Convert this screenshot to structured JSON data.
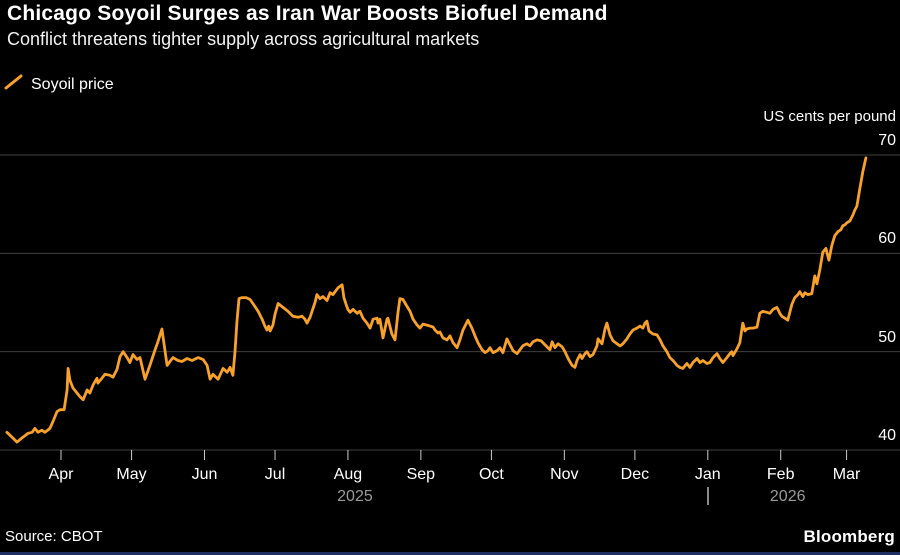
{
  "header": {
    "title": "Chicago Soyoil Surges as Iran War Boosts Biofuel Demand",
    "subtitle": "Conflict threatens tighter supply across agricultural markets"
  },
  "legend": {
    "label": "Soyoil price"
  },
  "footer": {
    "source": "Source: CBOT",
    "brand": "Bloomberg"
  },
  "colors": {
    "background": "#000000",
    "line": "#F8A12C",
    "grid": "#3f3f3f",
    "tick": "#cccccc",
    "text": "#ffffff",
    "muted_text": "#9a9a9a",
    "bottom_bar": "#1f2e63"
  },
  "chart_data": {
    "type": "line",
    "title": "Chicago Soyoil Surges as Iran War Boosts Biofuel Demand",
    "subtitle": "Conflict threatens tighter supply across agricultural markets",
    "unit_label": "US cents per pound",
    "legend_position": "top-left",
    "grid": true,
    "line_color": "#F8A12C",
    "x_axis": {
      "x_unit": "days since 2025-04-01",
      "tick_labels": [
        "Apr",
        "May",
        "Jun",
        "Jul",
        "Aug",
        "Sep",
        "Oct",
        "Nov",
        "Dec",
        "Jan",
        "Feb",
        "Mar"
      ],
      "tick_day_offsets": [
        0,
        30,
        61,
        91,
        122,
        153,
        183,
        214,
        244,
        275,
        306,
        334
      ],
      "year_labels": [
        {
          "text": "2025",
          "under_month": "Aug"
        },
        {
          "text": "2026",
          "under_month": "Feb"
        }
      ],
      "year_divider_under_month": "Jan"
    },
    "y_axis": {
      "ticks": [
        40,
        50,
        60,
        70
      ],
      "ylim": [
        40,
        70
      ]
    },
    "series": [
      {
        "name": "Soyoil price",
        "points": [
          [
            -23.0,
            41.8
          ],
          [
            -20.8,
            41.3
          ],
          [
            -18.7,
            40.8
          ],
          [
            -16.2,
            41.3
          ],
          [
            -14.0,
            41.7
          ],
          [
            -12.3,
            41.8
          ],
          [
            -11.1,
            42.2
          ],
          [
            -9.8,
            41.8
          ],
          [
            -8.1,
            42.0
          ],
          [
            -6.8,
            41.8
          ],
          [
            -4.7,
            42.2
          ],
          [
            -3.4,
            42.9
          ],
          [
            -1.7,
            43.9
          ],
          [
            -0.4,
            44.1
          ],
          [
            1.3,
            44.1
          ],
          [
            2.6,
            46.1
          ],
          [
            3.0,
            48.3
          ],
          [
            3.8,
            47.1
          ],
          [
            5.1,
            46.3
          ],
          [
            6.8,
            45.8
          ],
          [
            8.1,
            45.4
          ],
          [
            9.4,
            45.1
          ],
          [
            11.1,
            46.1
          ],
          [
            12.3,
            45.8
          ],
          [
            13.6,
            46.6
          ],
          [
            15.3,
            47.3
          ],
          [
            15.7,
            46.8
          ],
          [
            17.4,
            47.3
          ],
          [
            18.7,
            47.7
          ],
          [
            20.8,
            47.6
          ],
          [
            22.1,
            47.4
          ],
          [
            23.8,
            48.2
          ],
          [
            25.1,
            49.5
          ],
          [
            26.4,
            50.0
          ],
          [
            28.1,
            49.4
          ],
          [
            29.3,
            48.9
          ],
          [
            30.6,
            49.7
          ],
          [
            32.3,
            49.2
          ],
          [
            33.6,
            49.4
          ],
          [
            35.7,
            47.2
          ],
          [
            37.8,
            48.6
          ],
          [
            40.0,
            50.2
          ],
          [
            41.2,
            51.0
          ],
          [
            42.9,
            52.3
          ],
          [
            45.1,
            48.6
          ],
          [
            46.3,
            49.0
          ],
          [
            47.6,
            49.4
          ],
          [
            49.7,
            49.1
          ],
          [
            51.4,
            49.0
          ],
          [
            53.6,
            49.3
          ],
          [
            55.7,
            49.1
          ],
          [
            58.3,
            49.4
          ],
          [
            60.4,
            49.2
          ],
          [
            62.1,
            48.6
          ],
          [
            63.4,
            47.2
          ],
          [
            64.6,
            47.7
          ],
          [
            66.8,
            47.2
          ],
          [
            68.9,
            48.3
          ],
          [
            70.6,
            47.9
          ],
          [
            71.9,
            48.4
          ],
          [
            73.1,
            47.6
          ],
          [
            74.0,
            50.0
          ],
          [
            74.8,
            53.0
          ],
          [
            75.7,
            55.4
          ],
          [
            77.0,
            55.5
          ],
          [
            78.7,
            55.5
          ],
          [
            80.4,
            55.3
          ],
          [
            81.6,
            54.9
          ],
          [
            83.8,
            54.1
          ],
          [
            85.5,
            53.3
          ],
          [
            86.7,
            52.6
          ],
          [
            87.6,
            52.2
          ],
          [
            88.3,
            52.6
          ],
          [
            88.9,
            52.1
          ],
          [
            90.1,
            52.7
          ],
          [
            91.0,
            53.8
          ],
          [
            92.3,
            54.9
          ],
          [
            94.4,
            54.5
          ],
          [
            96.5,
            54.1
          ],
          [
            98.6,
            53.6
          ],
          [
            100.8,
            53.5
          ],
          [
            102.5,
            53.6
          ],
          [
            103.7,
            53.3
          ],
          [
            104.6,
            52.9
          ],
          [
            105.9,
            53.5
          ],
          [
            108.0,
            55.0
          ],
          [
            108.8,
            55.8
          ],
          [
            110.1,
            55.4
          ],
          [
            111.4,
            55.6
          ],
          [
            113.1,
            55.2
          ],
          [
            114.4,
            56.0
          ],
          [
            115.6,
            55.8
          ],
          [
            117.8,
            56.5
          ],
          [
            119.5,
            56.8
          ],
          [
            120.3,
            55.5
          ],
          [
            121.2,
            54.8
          ],
          [
            122.0,
            54.3
          ],
          [
            122.9,
            54.0
          ],
          [
            124.2,
            54.3
          ],
          [
            125.9,
            53.9
          ],
          [
            127.1,
            54.1
          ],
          [
            128.4,
            53.4
          ],
          [
            130.1,
            52.9
          ],
          [
            131.4,
            52.4
          ],
          [
            132.7,
            53.3
          ],
          [
            134.4,
            53.4
          ],
          [
            134.8,
            52.9
          ],
          [
            135.6,
            53.3
          ],
          [
            136.9,
            51.4
          ],
          [
            138.6,
            53.3
          ],
          [
            139.0,
            53.4
          ],
          [
            140.7,
            51.8
          ],
          [
            142.0,
            51.2
          ],
          [
            143.3,
            54.0
          ],
          [
            144.1,
            55.4
          ],
          [
            145.4,
            55.3
          ],
          [
            147.1,
            54.6
          ],
          [
            148.4,
            54.1
          ],
          [
            149.7,
            53.3
          ],
          [
            151.4,
            52.7
          ],
          [
            152.6,
            52.4
          ],
          [
            153.9,
            52.8
          ],
          [
            155.6,
            52.7
          ],
          [
            156.9,
            52.6
          ],
          [
            158.2,
            52.5
          ],
          [
            159.0,
            52.2
          ],
          [
            160.3,
            51.9
          ],
          [
            161.1,
            52.0
          ],
          [
            162.4,
            51.4
          ],
          [
            164.1,
            51.2
          ],
          [
            165.4,
            51.6
          ],
          [
            166.7,
            50.9
          ],
          [
            168.4,
            50.4
          ],
          [
            169.6,
            51.2
          ],
          [
            170.9,
            52.2
          ],
          [
            173.0,
            53.2
          ],
          [
            174.7,
            52.4
          ],
          [
            176.0,
            51.6
          ],
          [
            177.3,
            50.9
          ],
          [
            179.0,
            50.2
          ],
          [
            180.3,
            49.9
          ],
          [
            181.5,
            50.1
          ],
          [
            182.4,
            50.4
          ],
          [
            183.7,
            49.9
          ],
          [
            185.4,
            50.1
          ],
          [
            186.6,
            50.4
          ],
          [
            187.9,
            49.9
          ],
          [
            189.6,
            51.3
          ],
          [
            190.9,
            50.7
          ],
          [
            192.2,
            50.1
          ],
          [
            193.9,
            49.8
          ],
          [
            196.4,
            50.6
          ],
          [
            198.1,
            50.8
          ],
          [
            199.4,
            50.6
          ],
          [
            200.7,
            51.0
          ],
          [
            202.4,
            51.2
          ],
          [
            204.1,
            51.1
          ],
          [
            206.6,
            50.5
          ],
          [
            207.9,
            50.2
          ],
          [
            208.8,
            51.0
          ],
          [
            210.0,
            50.4
          ],
          [
            211.3,
            50.8
          ],
          [
            213.0,
            50.5
          ],
          [
            214.3,
            50.0
          ],
          [
            215.6,
            49.3
          ],
          [
            217.3,
            48.6
          ],
          [
            218.5,
            48.4
          ],
          [
            219.4,
            49.1
          ],
          [
            220.7,
            49.7
          ],
          [
            221.5,
            49.3
          ],
          [
            222.8,
            49.8
          ],
          [
            223.6,
            50.0
          ],
          [
            224.9,
            49.5
          ],
          [
            226.2,
            49.7
          ],
          [
            227.9,
            50.6
          ],
          [
            228.3,
            51.3
          ],
          [
            230.0,
            50.8
          ],
          [
            231.3,
            52.3
          ],
          [
            232.1,
            52.9
          ],
          [
            233.4,
            51.7
          ],
          [
            234.7,
            51.1
          ],
          [
            236.4,
            50.8
          ],
          [
            237.7,
            50.6
          ],
          [
            238.9,
            50.8
          ],
          [
            240.6,
            51.3
          ],
          [
            241.9,
            51.8
          ],
          [
            243.2,
            52.2
          ],
          [
            244.9,
            52.4
          ],
          [
            246.2,
            52.6
          ],
          [
            247.4,
            52.4
          ],
          [
            248.3,
            52.9
          ],
          [
            249.1,
            53.1
          ],
          [
            250.0,
            52.1
          ],
          [
            251.7,
            51.8
          ],
          [
            253.4,
            51.7
          ],
          [
            254.7,
            51.2
          ],
          [
            255.9,
            50.6
          ],
          [
            257.6,
            50.0
          ],
          [
            258.9,
            49.4
          ],
          [
            260.2,
            49.1
          ],
          [
            261.9,
            48.6
          ],
          [
            263.2,
            48.4
          ],
          [
            264.4,
            48.3
          ],
          [
            266.1,
            48.8
          ],
          [
            267.4,
            48.4
          ],
          [
            268.7,
            48.9
          ],
          [
            270.4,
            49.3
          ],
          [
            271.7,
            48.9
          ],
          [
            272.9,
            49.1
          ],
          [
            274.6,
            48.8
          ],
          [
            275.9,
            48.9
          ],
          [
            277.2,
            49.4
          ],
          [
            278.9,
            49.8
          ],
          [
            280.1,
            49.3
          ],
          [
            281.4,
            48.9
          ],
          [
            283.1,
            49.4
          ],
          [
            284.4,
            49.8
          ],
          [
            285.2,
            50.0
          ],
          [
            285.7,
            49.6
          ],
          [
            287.4,
            50.3
          ],
          [
            288.6,
            50.9
          ],
          [
            289.5,
            52.3
          ],
          [
            289.9,
            52.9
          ],
          [
            290.8,
            52.1
          ],
          [
            291.6,
            52.3
          ],
          [
            292.9,
            52.4
          ],
          [
            294.2,
            52.4
          ],
          [
            295.9,
            52.5
          ],
          [
            297.1,
            53.9
          ],
          [
            298.4,
            54.1
          ],
          [
            300.1,
            54.0
          ],
          [
            301.4,
            53.9
          ],
          [
            302.7,
            54.3
          ],
          [
            304.4,
            54.5
          ],
          [
            305.6,
            53.9
          ],
          [
            306.5,
            53.6
          ],
          [
            307.8,
            53.4
          ],
          [
            309.0,
            53.2
          ],
          [
            310.7,
            54.8
          ],
          [
            312.0,
            55.5
          ],
          [
            313.3,
            55.8
          ],
          [
            314.1,
            56.1
          ],
          [
            315.4,
            55.6
          ],
          [
            316.3,
            56.0
          ],
          [
            317.5,
            55.8
          ],
          [
            319.2,
            55.9
          ],
          [
            320.5,
            57.7
          ],
          [
            321.4,
            56.9
          ],
          [
            322.6,
            58.3
          ],
          [
            323.9,
            60.1
          ],
          [
            325.2,
            60.5
          ],
          [
            326.5,
            59.3
          ],
          [
            327.7,
            60.8
          ],
          [
            329.0,
            61.8
          ],
          [
            330.3,
            62.2
          ],
          [
            331.6,
            62.4
          ],
          [
            332.4,
            62.8
          ],
          [
            333.3,
            62.9
          ],
          [
            334.1,
            63.1
          ],
          [
            335.4,
            63.3
          ],
          [
            336.7,
            63.9
          ],
          [
            337.5,
            64.4
          ],
          [
            338.4,
            64.8
          ],
          [
            339.6,
            66.5
          ],
          [
            340.9,
            68.3
          ],
          [
            342.2,
            69.7
          ]
        ]
      }
    ]
  }
}
